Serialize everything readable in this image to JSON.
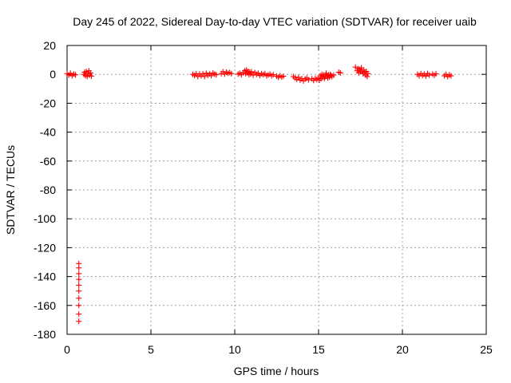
{
  "chart_data": {
    "type": "scatter",
    "title": "Day 245 of 2022, Sidereal Day-to-day VTEC variation (SDTVAR) for receiver uaib",
    "xlabel": "GPS time / hours",
    "ylabel": "SDTVAR / TECUs",
    "xlim": [
      0,
      25
    ],
    "ylim": [
      -180,
      20
    ],
    "xticks": [
      0,
      5,
      10,
      15,
      20,
      25
    ],
    "yticks": [
      20,
      0,
      -20,
      -40,
      -60,
      -80,
      -100,
      -120,
      -140,
      -160,
      -180
    ],
    "xtick_labels": [
      "0",
      "5",
      "10",
      "15",
      "20",
      "25"
    ],
    "ytick_labels": [
      "20",
      "0",
      "-20",
      "-40",
      "-60",
      "-80",
      "-100",
      "-120",
      "-140",
      "-160",
      "-180"
    ],
    "grid": true,
    "marker": "+",
    "color": "#ff0000",
    "series": [
      {
        "name": "SDTVAR",
        "points": [
          [
            0.0,
            0.5
          ],
          [
            0.1,
            -0.5
          ],
          [
            0.2,
            0.8
          ],
          [
            0.3,
            -1.0
          ],
          [
            0.4,
            0.2
          ],
          [
            0.5,
            -0.3
          ],
          [
            1.0,
            0.0
          ],
          [
            1.05,
            1.5
          ],
          [
            1.1,
            -0.8
          ],
          [
            1.15,
            2.0
          ],
          [
            1.2,
            -1.5
          ],
          [
            1.25,
            0.5
          ],
          [
            1.3,
            2.5
          ],
          [
            1.35,
            -0.5
          ],
          [
            1.4,
            1.0
          ],
          [
            1.45,
            -1.2
          ],
          [
            7.5,
            0.0
          ],
          [
            7.6,
            -0.8
          ],
          [
            7.7,
            0.5
          ],
          [
            7.8,
            -1.5
          ],
          [
            7.9,
            0.2
          ],
          [
            8.0,
            -1.0
          ],
          [
            8.1,
            0.4
          ],
          [
            8.2,
            -1.5
          ],
          [
            8.3,
            0.8
          ],
          [
            8.4,
            -0.6
          ],
          [
            8.5,
            0.3
          ],
          [
            8.6,
            -0.9
          ],
          [
            8.7,
            1.0
          ],
          [
            8.8,
            0.2
          ],
          [
            8.9,
            -0.3
          ],
          [
            9.2,
            0.5
          ],
          [
            9.3,
            1.8
          ],
          [
            9.4,
            0.2
          ],
          [
            9.5,
            1.5
          ],
          [
            9.6,
            0.8
          ],
          [
            9.7,
            1.2
          ],
          [
            9.8,
            0.5
          ],
          [
            10.2,
            0.2
          ],
          [
            10.3,
            0.8
          ],
          [
            10.4,
            -0.2
          ],
          [
            10.5,
            1.2
          ],
          [
            10.6,
            2.5
          ],
          [
            10.65,
            0.5
          ],
          [
            10.7,
            3.0
          ],
          [
            10.75,
            1.0
          ],
          [
            10.8,
            2.0
          ],
          [
            10.85,
            -0.2
          ],
          [
            10.9,
            1.5
          ],
          [
            10.95,
            0.2
          ],
          [
            11.0,
            1.8
          ],
          [
            11.1,
            -0.5
          ],
          [
            11.2,
            1.2
          ],
          [
            11.3,
            0.0
          ],
          [
            11.4,
            0.8
          ],
          [
            11.5,
            -0.8
          ],
          [
            11.6,
            0.5
          ],
          [
            11.7,
            -0.2
          ],
          [
            11.8,
            0.6
          ],
          [
            11.9,
            -1.0
          ],
          [
            12.0,
            -0.5
          ],
          [
            12.1,
            0.2
          ],
          [
            12.2,
            -1.0
          ],
          [
            12.3,
            -0.2
          ],
          [
            12.5,
            -1.2
          ],
          [
            12.6,
            -2.0
          ],
          [
            12.7,
            -1.0
          ],
          [
            12.8,
            -1.8
          ],
          [
            12.9,
            -1.3
          ],
          [
            13.5,
            -1.5
          ],
          [
            13.6,
            -2.5
          ],
          [
            13.7,
            -3.5
          ],
          [
            13.8,
            -2.0
          ],
          [
            13.9,
            -4.0
          ],
          [
            14.0,
            -3.0
          ],
          [
            14.1,
            -4.5
          ],
          [
            14.2,
            -3.2
          ],
          [
            14.3,
            -2.5
          ],
          [
            14.4,
            -3.8
          ],
          [
            14.6,
            -3.0
          ],
          [
            14.7,
            -4.2
          ],
          [
            14.8,
            -2.8
          ],
          [
            14.9,
            -3.6
          ],
          [
            15.0,
            -2.5
          ],
          [
            15.05,
            -4.0
          ],
          [
            15.1,
            -1.0
          ],
          [
            15.15,
            -3.0
          ],
          [
            15.2,
            0.0
          ],
          [
            15.25,
            -2.0
          ],
          [
            15.3,
            -0.5
          ],
          [
            15.35,
            -2.8
          ],
          [
            15.4,
            -1.5
          ],
          [
            15.45,
            0.8
          ],
          [
            15.5,
            -1.2
          ],
          [
            15.55,
            -2.5
          ],
          [
            15.6,
            -0.3
          ],
          [
            15.65,
            -1.8
          ],
          [
            15.7,
            0.0
          ],
          [
            15.75,
            -0.8
          ],
          [
            15.8,
            -1.5
          ],
          [
            15.9,
            -0.5
          ],
          [
            16.2,
            1.5
          ],
          [
            16.3,
            1.0
          ],
          [
            17.2,
            5.0
          ],
          [
            17.3,
            2.5
          ],
          [
            17.35,
            4.0
          ],
          [
            17.4,
            1.0
          ],
          [
            17.45,
            3.5
          ],
          [
            17.5,
            1.8
          ],
          [
            17.55,
            4.5
          ],
          [
            17.6,
            2.0
          ],
          [
            17.65,
            0.5
          ],
          [
            17.7,
            3.0
          ],
          [
            17.75,
            1.5
          ],
          [
            17.8,
            -0.5
          ],
          [
            17.85,
            2.0
          ],
          [
            17.9,
            -1.5
          ],
          [
            17.95,
            0.5
          ],
          [
            20.9,
            0.0
          ],
          [
            21.0,
            -1.0
          ],
          [
            21.1,
            0.5
          ],
          [
            21.2,
            -0.8
          ],
          [
            21.3,
            0.2
          ],
          [
            21.4,
            -1.2
          ],
          [
            21.5,
            0.6
          ],
          [
            21.6,
            -0.5
          ],
          [
            21.8,
            0.2
          ],
          [
            21.9,
            -0.6
          ],
          [
            22.0,
            0.4
          ],
          [
            22.5,
            -1.0
          ],
          [
            22.6,
            0.0
          ],
          [
            22.7,
            -1.5
          ],
          [
            22.8,
            -0.3
          ],
          [
            22.9,
            -1.0
          ],
          [
            0.7,
            -131
          ],
          [
            0.7,
            -134
          ],
          [
            0.7,
            -138
          ],
          [
            0.7,
            -142
          ],
          [
            0.7,
            -146
          ],
          [
            0.7,
            -150
          ],
          [
            0.7,
            -155
          ],
          [
            0.7,
            -160
          ],
          [
            0.7,
            -166
          ],
          [
            0.7,
            -171
          ]
        ]
      }
    ]
  }
}
